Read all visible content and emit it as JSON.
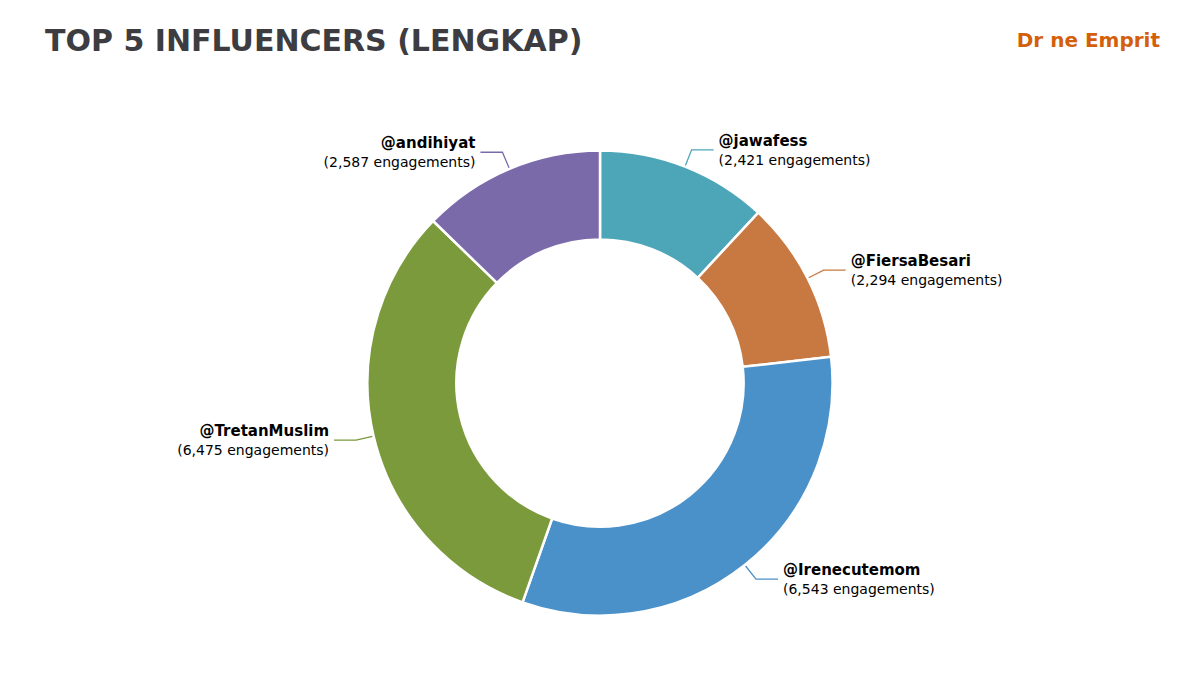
{
  "chart_data": {
    "type": "donut",
    "title": "TOP 5 INFLUENCERS (LENGKAP)",
    "categories": [
      "@jawafess",
      "@FiersaBesari",
      "@Irenecutemom",
      "@TretanMuslim",
      "@andihiyat"
    ],
    "values": [
      2421,
      2294,
      6543,
      6475,
      2587
    ],
    "value_labels": [
      "(2,421 engagements)",
      "(2,294 engagements)",
      "(6,543 engagements)",
      "(6,475 engagements)",
      "(2,587 engagements)"
    ],
    "colors": [
      "#4da6b8",
      "#c87941",
      "#4a90c9",
      "#7a9a3c",
      "#7b6aaa"
    ],
    "data_labels": true,
    "annotations": [
      "Dr",
      "ne",
      "Emprit"
    ]
  }
}
